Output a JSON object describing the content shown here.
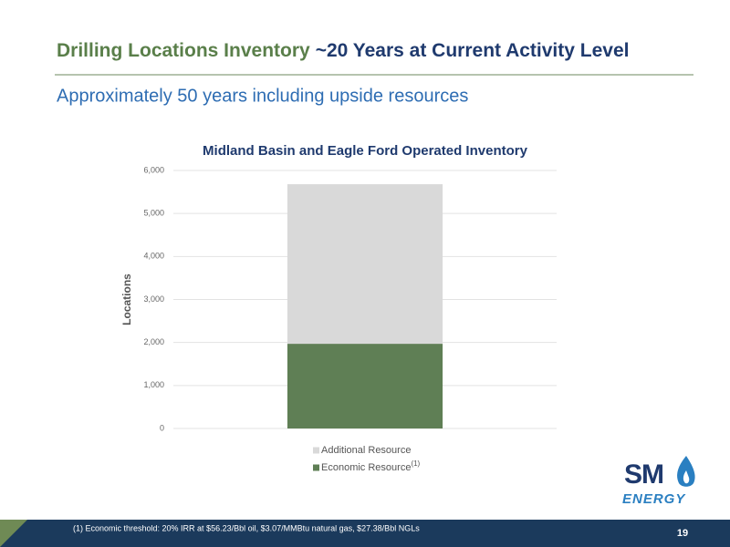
{
  "slide": {
    "title_part1": "Drilling Locations Inventory",
    "title_part2": "~20 Years at Current Activity Level",
    "subtitle": "Approximately 50 years including upside resources",
    "footnote": "(1) Economic threshold: 20% IRR at $56.23/Bbl oil, $3.07/MMBtu natural gas, $27.38/Bbl NGLs",
    "page_number": "19",
    "logo": {
      "top": "SM",
      "bottom": "ENERGY"
    }
  },
  "chart_data": {
    "type": "bar",
    "stacked": true,
    "title": "Midland Basin and Eagle Ford Operated Inventory",
    "y_label": "Locations",
    "categories": [
      null
    ],
    "ylim": [
      0,
      6000
    ],
    "yticks": [
      0,
      {
        "value": 1000,
        "label": "1,000"
      },
      {
        "value": 2000,
        "label": "2,000"
      },
      {
        "value": 3000,
        "label": "3,000"
      },
      {
        "value": 4000,
        "label": "4,000"
      },
      {
        "value": 5000,
        "label": "5,000"
      },
      {
        "value": 6000,
        "label": "6,000"
      }
    ],
    "grid": true,
    "series": [
      {
        "name": "Economic Resource",
        "superscript": "(1)",
        "color": "#5f7f55",
        "values": [
          1970
        ]
      },
      {
        "name": "Additional Resource",
        "color": "#d9d9d9",
        "values": [
          3710
        ]
      }
    ]
  }
}
